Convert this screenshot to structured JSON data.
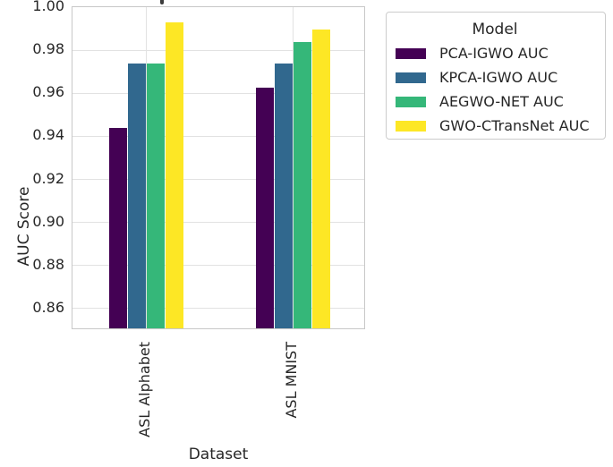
{
  "chart_data": {
    "type": "bar",
    "categories": [
      "ASL Alphabet",
      "ASL MNIST"
    ],
    "series": [
      {
        "name": "PCA-IGWO AUC",
        "color": "#440154",
        "values": [
          0.943,
          0.962
        ]
      },
      {
        "name": "KPCA-IGWO AUC",
        "color": "#31688e",
        "values": [
          0.973,
          0.973
        ]
      },
      {
        "name": "AEGWO-NET AUC",
        "color": "#35b779",
        "values": [
          0.973,
          0.983
        ]
      },
      {
        "name": "GWO-CTransNet AUC",
        "color": "#fde725",
        "values": [
          0.992,
          0.989
        ]
      }
    ],
    "xlabel": "Dataset",
    "ylabel": "AUC Score",
    "ylim": [
      0.85,
      1.0
    ],
    "yticks": [
      1.0,
      0.98,
      0.96,
      0.94,
      0.92,
      0.9,
      0.88,
      0.86
    ],
    "grid": true,
    "legend_position": "outside upper right"
  },
  "legend": {
    "title": "Model",
    "entries": [
      {
        "label": "PCA-IGWO AUC",
        "color": "#440154"
      },
      {
        "label": "KPCA-IGWO AUC",
        "color": "#31688e"
      },
      {
        "label": "AEGWO-NET AUC",
        "color": "#35b779"
      },
      {
        "label": "GWO-CTransNet AUC",
        "color": "#fde725"
      }
    ]
  },
  "colors": {
    "grid": "#e2e2e2",
    "spine": "#c8c8c8",
    "text": "#262626",
    "background": "#ffffff"
  }
}
